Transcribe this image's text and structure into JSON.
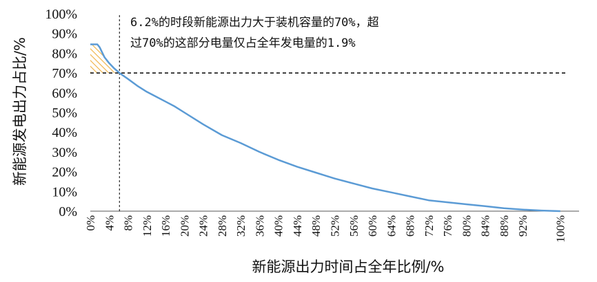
{
  "chart_data": {
    "type": "line",
    "xlabel": "新能源出力时间占全年比例/%",
    "ylabel": "新能源发电出力占比/%",
    "xlim": [
      0,
      104
    ],
    "ylim": [
      0,
      100
    ],
    "x_ticks": [
      "0%",
      "4%",
      "8%",
      "12%",
      "16%",
      "20%",
      "24%",
      "28%",
      "32%",
      "36%",
      "40%",
      "44%",
      "48%",
      "52%",
      "56%",
      "60%",
      "64%",
      "68%",
      "72%",
      "76%",
      "80%",
      "84%",
      "88%",
      "92%",
      "100%"
    ],
    "x_tick_values": [
      0,
      4,
      8,
      12,
      16,
      20,
      24,
      28,
      32,
      36,
      40,
      44,
      48,
      52,
      56,
      60,
      64,
      68,
      72,
      76,
      80,
      84,
      88,
      92,
      100
    ],
    "y_ticks": [
      "0%",
      "10%",
      "20%",
      "30%",
      "40%",
      "50%",
      "60%",
      "70%",
      "80%",
      "90%",
      "100%"
    ],
    "y_tick_values": [
      0,
      10,
      20,
      30,
      40,
      50,
      60,
      70,
      80,
      90,
      100
    ],
    "grid": false,
    "series": [
      {
        "x": [
          0,
          1.5,
          2,
          3,
          4,
          5,
          6.2,
          8,
          10,
          12,
          14,
          16,
          18,
          20,
          24,
          28,
          32,
          36,
          40,
          44,
          48,
          52,
          56,
          60,
          64,
          68,
          72,
          76,
          80,
          84,
          88,
          92,
          96,
          100
        ],
        "y": [
          84.5,
          84.5,
          83,
          78,
          75,
          72.5,
          70,
          67,
          63.5,
          60.5,
          58,
          55.5,
          53,
          50,
          44,
          38.5,
          34.5,
          30,
          26,
          22.5,
          19.5,
          16.5,
          14,
          11.5,
          9.5,
          7.5,
          5.5,
          4.5,
          3.5,
          2.5,
          1.5,
          0.8,
          0.3,
          0
        ],
        "color": "#5b9bd5"
      }
    ],
    "reference_lines": {
      "horizontal_y": 70,
      "vertical_x": 6.2
    },
    "hatched_region_color": "#f0b040",
    "annotation": {
      "line1": "6.2%的时段新能源出力大于装机容量的70%，超",
      "line2": "过70%的这部分电量仅占全年发电量的1.9%"
    }
  }
}
